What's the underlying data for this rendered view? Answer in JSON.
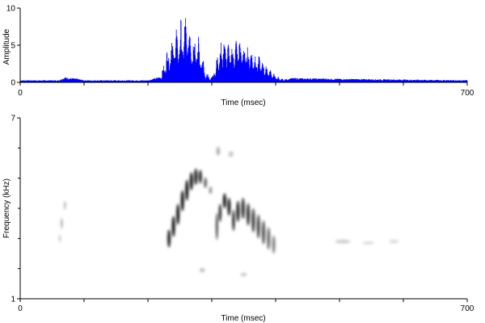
{
  "chart_data": [
    {
      "type": "area",
      "panel": "waveform",
      "xlabel": "Time (msec)",
      "ylabel": "Amplitude",
      "xlim": [
        0,
        700
      ],
      "ylim": [
        0,
        10
      ],
      "x_ticks": [
        0,
        700
      ],
      "y_ticks": [
        0,
        5,
        10
      ],
      "grid": false,
      "color": "#0000ff",
      "envelope": {
        "x": [
          0,
          60,
          70,
          90,
          100,
          150,
          200,
          220,
          230,
          240,
          250,
          260,
          270,
          280,
          290,
          300,
          305,
          310,
          320,
          330,
          340,
          350,
          360,
          370,
          380,
          390,
          400,
          410,
          420,
          500,
          600,
          700
        ],
        "y": [
          0.3,
          0.3,
          0.7,
          0.5,
          0.3,
          0.3,
          0.3,
          0.8,
          5.0,
          7.5,
          8.5,
          10.0,
          8.0,
          6.5,
          1.5,
          0.8,
          1.5,
          5.0,
          6.5,
          5.0,
          6.5,
          5.5,
          5.0,
          4.0,
          3.0,
          2.0,
          1.0,
          0.5,
          0.6,
          0.5,
          0.4,
          0.3
        ]
      }
    },
    {
      "type": "heatmap",
      "panel": "spectrogram",
      "xlabel": "Time (msec)",
      "ylabel": "Frequency (kHz)",
      "xlim": [
        0,
        700
      ],
      "ylim": [
        1,
        7
      ],
      "x_ticks": [
        0,
        700
      ],
      "y_ticks": [
        1,
        7
      ],
      "grid": false,
      "color": "#000000",
      "blobs": [
        {
          "x": 62,
          "y": 3.0,
          "w": 2.5,
          "h": 0.25,
          "alpha": 0.25
        },
        {
          "x": 65,
          "y": 3.5,
          "w": 2.5,
          "h": 0.35,
          "alpha": 0.35
        },
        {
          "x": 70,
          "y": 4.1,
          "w": 2.5,
          "h": 0.3,
          "alpha": 0.3
        },
        {
          "x": 233,
          "y": 3.0,
          "w": 5,
          "h": 0.6,
          "alpha": 0.9
        },
        {
          "x": 240,
          "y": 3.4,
          "w": 5,
          "h": 0.7,
          "alpha": 0.95
        },
        {
          "x": 247,
          "y": 3.8,
          "w": 5,
          "h": 0.7,
          "alpha": 0.95
        },
        {
          "x": 254,
          "y": 4.25,
          "w": 5,
          "h": 0.7,
          "alpha": 0.95
        },
        {
          "x": 261,
          "y": 4.6,
          "w": 5,
          "h": 0.7,
          "alpha": 0.95
        },
        {
          "x": 268,
          "y": 4.9,
          "w": 5,
          "h": 0.6,
          "alpha": 0.95
        },
        {
          "x": 275,
          "y": 5.05,
          "w": 5,
          "h": 0.55,
          "alpha": 0.9
        },
        {
          "x": 282,
          "y": 5.05,
          "w": 5,
          "h": 0.45,
          "alpha": 0.85
        },
        {
          "x": 290,
          "y": 4.85,
          "w": 5,
          "h": 0.35,
          "alpha": 0.6
        },
        {
          "x": 298,
          "y": 4.6,
          "w": 5,
          "h": 0.25,
          "alpha": 0.4
        },
        {
          "x": 308,
          "y": 3.4,
          "w": 2.5,
          "h": 0.9,
          "alpha": 0.85
        },
        {
          "x": 313,
          "y": 3.85,
          "w": 4,
          "h": 0.6,
          "alpha": 0.9
        },
        {
          "x": 320,
          "y": 4.25,
          "w": 5,
          "h": 0.5,
          "alpha": 0.95
        },
        {
          "x": 327,
          "y": 4.05,
          "w": 5,
          "h": 0.6,
          "alpha": 0.9
        },
        {
          "x": 334,
          "y": 3.6,
          "w": 4,
          "h": 0.7,
          "alpha": 0.9
        },
        {
          "x": 341,
          "y": 3.9,
          "w": 5,
          "h": 0.7,
          "alpha": 0.9
        },
        {
          "x": 349,
          "y": 4.0,
          "w": 5,
          "h": 0.7,
          "alpha": 0.85
        },
        {
          "x": 357,
          "y": 3.8,
          "w": 5,
          "h": 0.75,
          "alpha": 0.85
        },
        {
          "x": 365,
          "y": 3.6,
          "w": 5,
          "h": 0.8,
          "alpha": 0.8
        },
        {
          "x": 373,
          "y": 3.4,
          "w": 5,
          "h": 0.8,
          "alpha": 0.75
        },
        {
          "x": 381,
          "y": 3.2,
          "w": 5,
          "h": 0.8,
          "alpha": 0.7
        },
        {
          "x": 389,
          "y": 3.0,
          "w": 5,
          "h": 0.75,
          "alpha": 0.6
        },
        {
          "x": 397,
          "y": 2.8,
          "w": 5,
          "h": 0.6,
          "alpha": 0.5
        },
        {
          "x": 285,
          "y": 1.95,
          "w": 8,
          "h": 0.15,
          "alpha": 0.25
        },
        {
          "x": 350,
          "y": 1.8,
          "w": 10,
          "h": 0.12,
          "alpha": 0.2
        },
        {
          "x": 310,
          "y": 5.9,
          "w": 6,
          "h": 0.3,
          "alpha": 0.3
        },
        {
          "x": 330,
          "y": 5.8,
          "w": 8,
          "h": 0.2,
          "alpha": 0.2
        },
        {
          "x": 505,
          "y": 2.9,
          "w": 24,
          "h": 0.12,
          "alpha": 0.2
        },
        {
          "x": 545,
          "y": 2.85,
          "w": 18,
          "h": 0.1,
          "alpha": 0.15
        },
        {
          "x": 585,
          "y": 2.9,
          "w": 15,
          "h": 0.12,
          "alpha": 0.15
        }
      ]
    }
  ]
}
